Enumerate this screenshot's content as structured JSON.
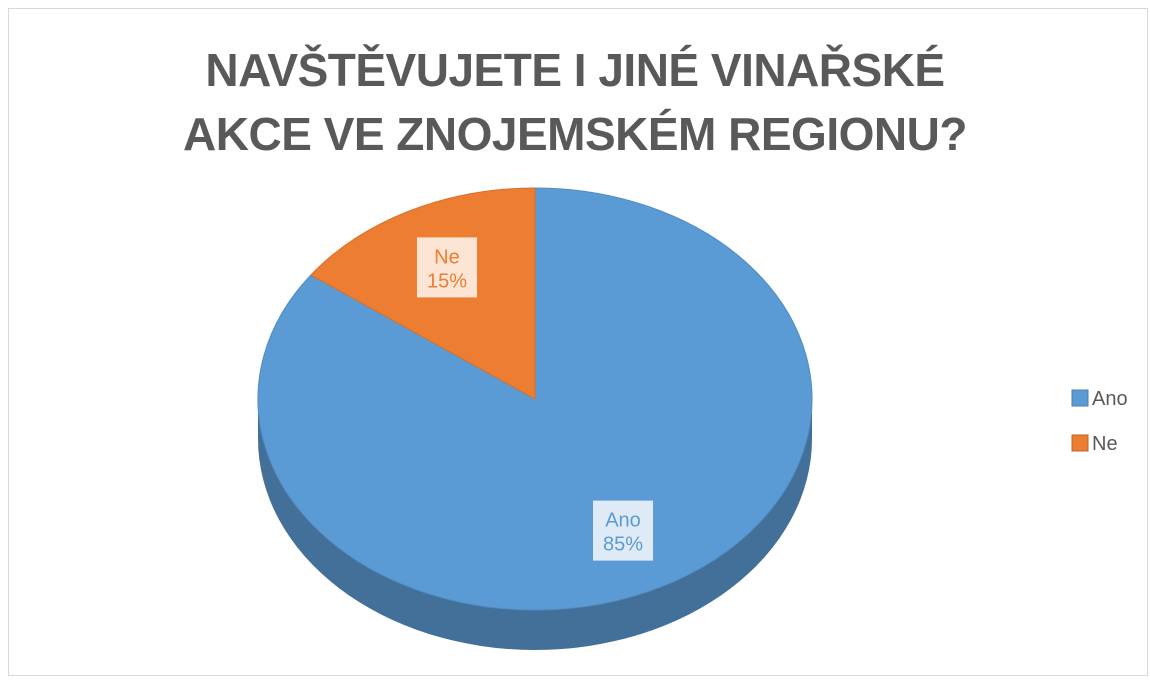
{
  "chart_data": {
    "type": "pie",
    "title": "NAVŠTĚVUJETE I JINÉ VINAŘSKÉ AKCE VE ZNOJEMSKÉM REGIONU?",
    "categories": [
      "Ano",
      "Ne"
    ],
    "values": [
      85,
      15
    ],
    "value_labels": [
      "85%",
      "15%"
    ],
    "colors": [
      "#5b9bd5",
      "#ed7d31"
    ],
    "legend": "right"
  }
}
